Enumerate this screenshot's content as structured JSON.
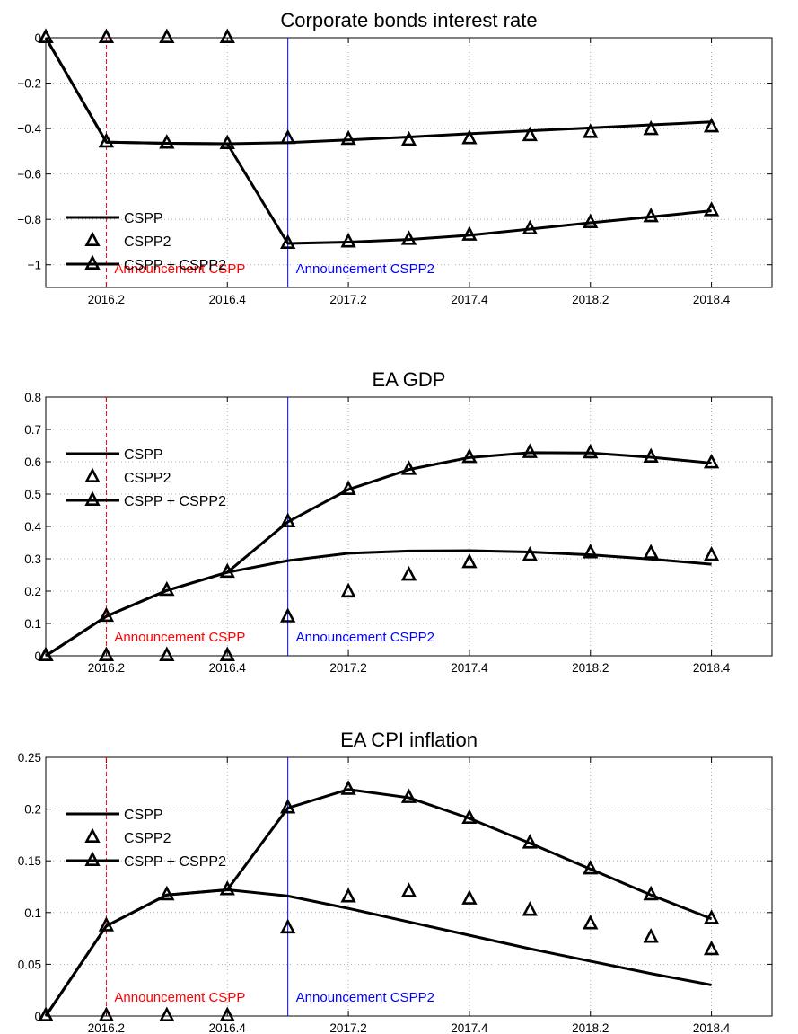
{
  "chart_data": [
    {
      "type": "line",
      "title": "Corporate bonds interest rate",
      "xlabel": "",
      "ylabel": "",
      "x": [
        0,
        1,
        2,
        3,
        4,
        5,
        6,
        7,
        8,
        9,
        10,
        11,
        12
      ],
      "xticks": [
        {
          "at": 1,
          "label": "2016.2"
        },
        {
          "at": 3,
          "label": "2016.4"
        },
        {
          "at": 5,
          "label": "2017.2"
        },
        {
          "at": 7,
          "label": "2017.4"
        },
        {
          "at": 9,
          "label": "2018.2"
        },
        {
          "at": 11,
          "label": "2018.4"
        }
      ],
      "xlim": [
        0,
        12
      ],
      "ylim": [
        -1.1,
        0
      ],
      "yticks": [
        0,
        -0.2,
        -0.4,
        -0.6,
        -0.8,
        -1
      ],
      "ytick_labels": [
        "0",
        "−0.2",
        "−0.4",
        "−0.6",
        "−0.8",
        "−1"
      ],
      "grid": true,
      "legend_placement": "lower-left",
      "series": [
        {
          "name": "CSPP",
          "style": "line",
          "values": [
            0,
            -0.46,
            -0.465,
            -0.467,
            -0.462,
            -0.45,
            -0.437,
            -0.423,
            -0.41,
            -0.397,
            -0.384,
            -0.371,
            null
          ]
        },
        {
          "name": "CSPP2",
          "style": "markers",
          "values": [
            0,
            0,
            0,
            0,
            -0.444,
            -0.448,
            -0.452,
            -0.445,
            -0.432,
            -0.418,
            -0.405,
            -0.393,
            null
          ]
        },
        {
          "name": "CSPP + CSPP2",
          "style": "line-markers",
          "values": [
            0,
            -0.46,
            -0.465,
            -0.467,
            -0.906,
            -0.9,
            -0.889,
            -0.87,
            -0.843,
            -0.815,
            -0.789,
            -0.762,
            null
          ]
        }
      ],
      "vlines": [
        {
          "at": 1,
          "label": "Announcement CSPP",
          "color": "#ff0000",
          "dashed": true
        },
        {
          "at": 4,
          "label": "Announcement CSPP2",
          "color": "#0000ff",
          "dashed": false
        }
      ]
    },
    {
      "type": "line",
      "title": "EA GDP",
      "xlabel": "",
      "ylabel": "",
      "x": [
        0,
        1,
        2,
        3,
        4,
        5,
        6,
        7,
        8,
        9,
        10,
        11,
        12
      ],
      "xticks": [
        {
          "at": 1,
          "label": "2016.2"
        },
        {
          "at": 3,
          "label": "2016.4"
        },
        {
          "at": 5,
          "label": "2017.2"
        },
        {
          "at": 7,
          "label": "2017.4"
        },
        {
          "at": 9,
          "label": "2018.2"
        },
        {
          "at": 11,
          "label": "2018.4"
        }
      ],
      "xlim": [
        0,
        12
      ],
      "ylim": [
        0,
        0.8
      ],
      "yticks": [
        0,
        0.1,
        0.2,
        0.3,
        0.4,
        0.5,
        0.6,
        0.7,
        0.8
      ],
      "ytick_labels": [
        "0",
        "0.1",
        "0.2",
        "0.3",
        "0.4",
        "0.5",
        "0.6",
        "0.7",
        "0.8"
      ],
      "grid": true,
      "legend_placement": "upper-left",
      "series": [
        {
          "name": "CSPP",
          "style": "line",
          "values": [
            0,
            0.122,
            0.202,
            0.258,
            0.294,
            0.317,
            0.324,
            0.325,
            0.321,
            0.312,
            0.299,
            0.283,
            null
          ]
        },
        {
          "name": "CSPP2",
          "style": "markers",
          "values": [
            0,
            0,
            0,
            0,
            0.12,
            0.197,
            0.249,
            0.288,
            0.31,
            0.318,
            0.317,
            0.31,
            null
          ]
        },
        {
          "name": "CSPP + CSPP2",
          "style": "line-markers",
          "values": [
            0,
            0.122,
            0.202,
            0.258,
            0.414,
            0.514,
            0.576,
            0.613,
            0.628,
            0.627,
            0.614,
            0.596,
            null
          ]
        }
      ],
      "vlines": [
        {
          "at": 1,
          "label": "Announcement CSPP",
          "color": "#ff0000",
          "dashed": true
        },
        {
          "at": 4,
          "label": "Announcement CSPP2",
          "color": "#0000ff",
          "dashed": false
        }
      ]
    },
    {
      "type": "line",
      "title": "EA CPI inflation",
      "xlabel": "",
      "ylabel": "",
      "x": [
        0,
        1,
        2,
        3,
        4,
        5,
        6,
        7,
        8,
        9,
        10,
        11,
        12
      ],
      "xticks": [
        {
          "at": 1,
          "label": "2016.2"
        },
        {
          "at": 3,
          "label": "2016.4"
        },
        {
          "at": 5,
          "label": "2017.2"
        },
        {
          "at": 7,
          "label": "2017.4"
        },
        {
          "at": 9,
          "label": "2018.2"
        },
        {
          "at": 11,
          "label": "2018.4"
        }
      ],
      "xlim": [
        0,
        12
      ],
      "ylim": [
        0,
        0.25
      ],
      "yticks": [
        0,
        0.05,
        0.1,
        0.15,
        0.2,
        0.25
      ],
      "ytick_labels": [
        "0",
        "0.05",
        "0.1",
        "0.15",
        "0.2",
        "0.25"
      ],
      "grid": true,
      "legend_placement": "upper-left",
      "series": [
        {
          "name": "CSPP",
          "style": "line",
          "values": [
            0,
            0.087,
            0.117,
            0.122,
            0.116,
            0.104,
            0.091,
            0.078,
            0.065,
            0.053,
            0.041,
            0.03,
            null
          ]
        },
        {
          "name": "CSPP2",
          "style": "markers",
          "values": [
            0,
            0,
            0,
            0,
            0.085,
            0.115,
            0.12,
            0.113,
            0.102,
            0.089,
            0.076,
            0.064,
            null
          ]
        },
        {
          "name": "CSPP + CSPP2",
          "style": "line-markers",
          "values": [
            0,
            0.087,
            0.117,
            0.122,
            0.201,
            0.219,
            0.211,
            0.191,
            0.167,
            0.142,
            0.117,
            0.094,
            null
          ]
        }
      ],
      "vlines": [
        {
          "at": 1,
          "label": "Announcement CSPP",
          "color": "#ff0000",
          "dashed": true
        },
        {
          "at": 4,
          "label": "Announcement CSPP2",
          "color": "#0000ff",
          "dashed": false
        }
      ]
    }
  ]
}
